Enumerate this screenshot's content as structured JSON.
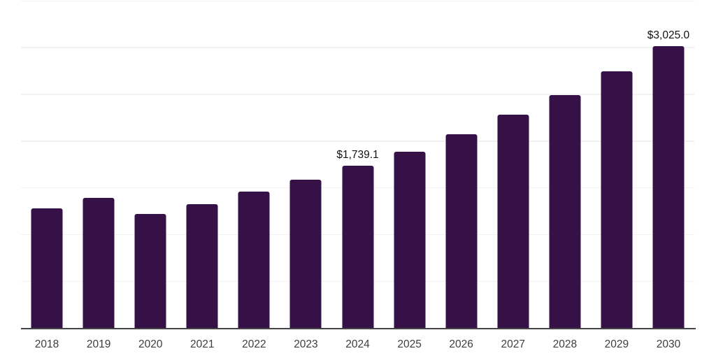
{
  "chart_data": {
    "type": "bar",
    "title": "",
    "xlabel": "",
    "ylabel": "",
    "categories": [
      "2018",
      "2019",
      "2020",
      "2021",
      "2022",
      "2023",
      "2024",
      "2025",
      "2026",
      "2027",
      "2028",
      "2029",
      "2030"
    ],
    "values": [
      1285,
      1395,
      1230,
      1335,
      1465,
      1595,
      1739.1,
      1890,
      2080,
      2285,
      2495,
      2755,
      3025
    ],
    "value_labels": [
      "",
      "",
      "",
      "",
      "",
      "",
      "$1,739.1",
      "",
      "",
      "",
      "",
      "",
      "$3,025.0"
    ],
    "ylim": [
      0,
      3500
    ],
    "gridline_step": 500,
    "grid": "horizontal",
    "legend_position": "none",
    "colors": {
      "bar": "#351148",
      "gridline": "#f2f2f2",
      "axis_line": "#454545",
      "tick_label": "#3d3d3d",
      "value_label": "#111111",
      "background": "#ffffff"
    }
  }
}
